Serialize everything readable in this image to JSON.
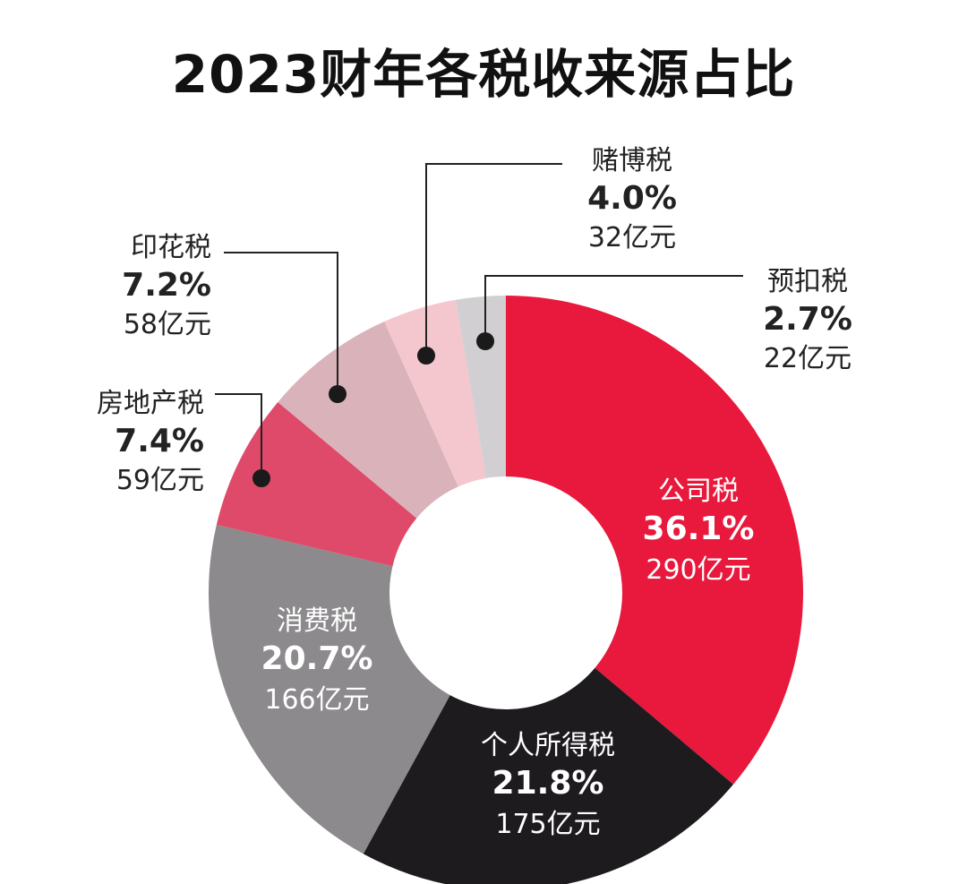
{
  "chart_data": {
    "type": "pie",
    "variant": "donut",
    "title": "2023财年各税收来源占比",
    "slices": [
      {
        "label": "公司税",
        "percent": 36.1,
        "percent_label": "36.1%",
        "amount_label": "290亿元",
        "color": "#e8193c",
        "text_color": "#ffffff",
        "label_position": "inside"
      },
      {
        "label": "个人所得税",
        "percent": 21.8,
        "percent_label": "21.8%",
        "amount_label": "175亿元",
        "color": "#1e1b1f",
        "text_color": "#ffffff",
        "label_position": "inside"
      },
      {
        "label": "消费税",
        "percent": 20.7,
        "percent_label": "20.7%",
        "amount_label": "166亿元",
        "color": "#8c8a8c",
        "text_color": "#ffffff",
        "label_position": "inside"
      },
      {
        "label": "房地产税",
        "percent": 7.4,
        "percent_label": "7.4%",
        "amount_label": "59亿元",
        "color": "#df4a6a",
        "text_color": "#222222",
        "label_position": "outside"
      },
      {
        "label": "印花税",
        "percent": 7.2,
        "percent_label": "7.2%",
        "amount_label": "58亿元",
        "color": "#d9b3b9",
        "text_color": "#222222",
        "label_position": "outside"
      },
      {
        "label": "赌博税",
        "percent": 4.0,
        "percent_label": "4.0%",
        "amount_label": "32亿元",
        "color": "#f3c7cd",
        "text_color": "#222222",
        "label_position": "outside"
      },
      {
        "label": "预扣税",
        "percent": 2.7,
        "percent_label": "2.7%",
        "amount_label": "22亿元",
        "color": "#d1cfd2",
        "text_color": "#222222",
        "label_position": "outside"
      }
    ],
    "start_angle": "12 o'clock",
    "direction": "clockwise",
    "legend": "none"
  }
}
